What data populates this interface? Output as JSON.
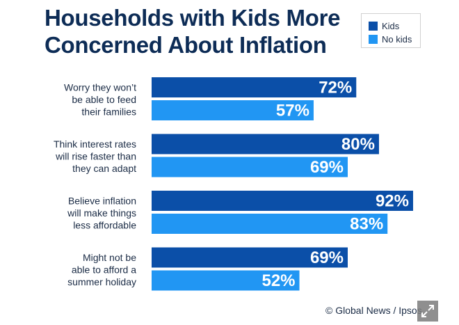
{
  "chart_data": {
    "type": "bar",
    "orientation": "horizontal",
    "title_lines": [
      "Households with Kids More",
      "Concerned About Inflation"
    ],
    "categories": [
      [
        "Worry they won’t",
        "be able to feed",
        "their families"
      ],
      [
        "Think interest rates",
        "will rise faster than",
        "they can adapt"
      ],
      [
        "Believe inflation",
        "will make things",
        "less affordable"
      ],
      [
        "Might not be",
        "able to afford a",
        "summer holiday"
      ]
    ],
    "series": [
      {
        "name": "Kids",
        "color": "#0b4fa8",
        "values": [
          72,
          80,
          92,
          69
        ]
      },
      {
        "name": "No kids",
        "color": "#2196f3",
        "values": [
          57,
          69,
          83,
          52
        ]
      }
    ],
    "value_suffix": "%",
    "xlim": [
      0,
      100
    ],
    "grid": false,
    "legend_position": "top-right"
  },
  "credit": "© Global News / Ipsos",
  "expand_icon": "expand-icon"
}
